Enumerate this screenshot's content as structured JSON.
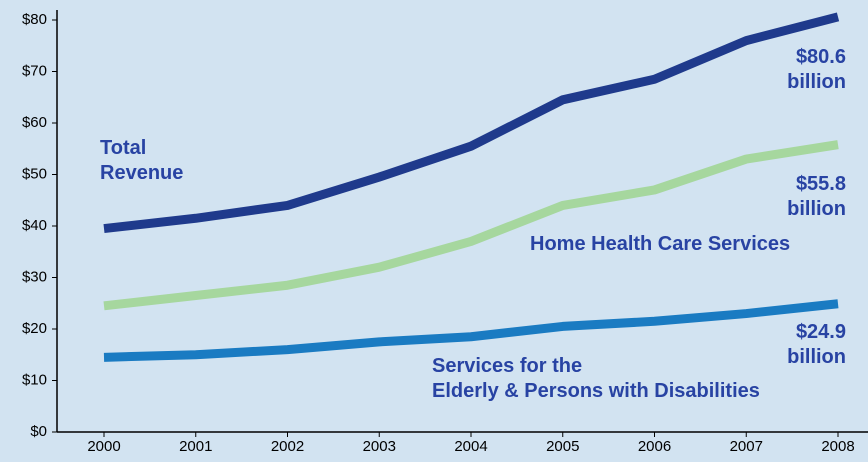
{
  "chart_data": {
    "type": "line",
    "categories": [
      "2000",
      "2001",
      "2002",
      "2003",
      "2004",
      "2005",
      "2006",
      "2007",
      "2008"
    ],
    "ylim": [
      0,
      80
    ],
    "yticks": [
      {
        "value": 0,
        "label": "$0"
      },
      {
        "value": 10,
        "label": "$10"
      },
      {
        "value": 20,
        "label": "$20"
      },
      {
        "value": 30,
        "label": "$30"
      },
      {
        "value": 40,
        "label": "$40"
      },
      {
        "value": 50,
        "label": "$50"
      },
      {
        "value": 60,
        "label": "$60"
      },
      {
        "value": 70,
        "label": "$70"
      },
      {
        "value": 80,
        "label": "$80"
      }
    ],
    "series": [
      {
        "name": "Total Revenue",
        "color": "#1f3a8c",
        "values": [
          39.5,
          41.5,
          44,
          49.5,
          55.5,
          64.5,
          68.5,
          76,
          80.6
        ],
        "value_labels": [
          null,
          null,
          null,
          null,
          null,
          null,
          null,
          null,
          "$80.6 billion"
        ]
      },
      {
        "name": "Home Health Care Services",
        "color": "#a6d79e",
        "values": [
          24.5,
          26.5,
          28.5,
          32,
          37,
          44,
          47,
          53,
          55.8
        ],
        "value_labels": [
          null,
          null,
          null,
          null,
          null,
          null,
          null,
          null,
          "$55.8 billion"
        ]
      },
      {
        "name": "Services for the\nElderly & Persons with Disabilities",
        "color": "#1a7bc2",
        "values": [
          14.5,
          15,
          16,
          17.5,
          18.5,
          20.5,
          21.5,
          23,
          24.9
        ],
        "value_labels": [
          null,
          null,
          null,
          null,
          null,
          null,
          null,
          null,
          "$24.9 billion"
        ]
      }
    ]
  }
}
